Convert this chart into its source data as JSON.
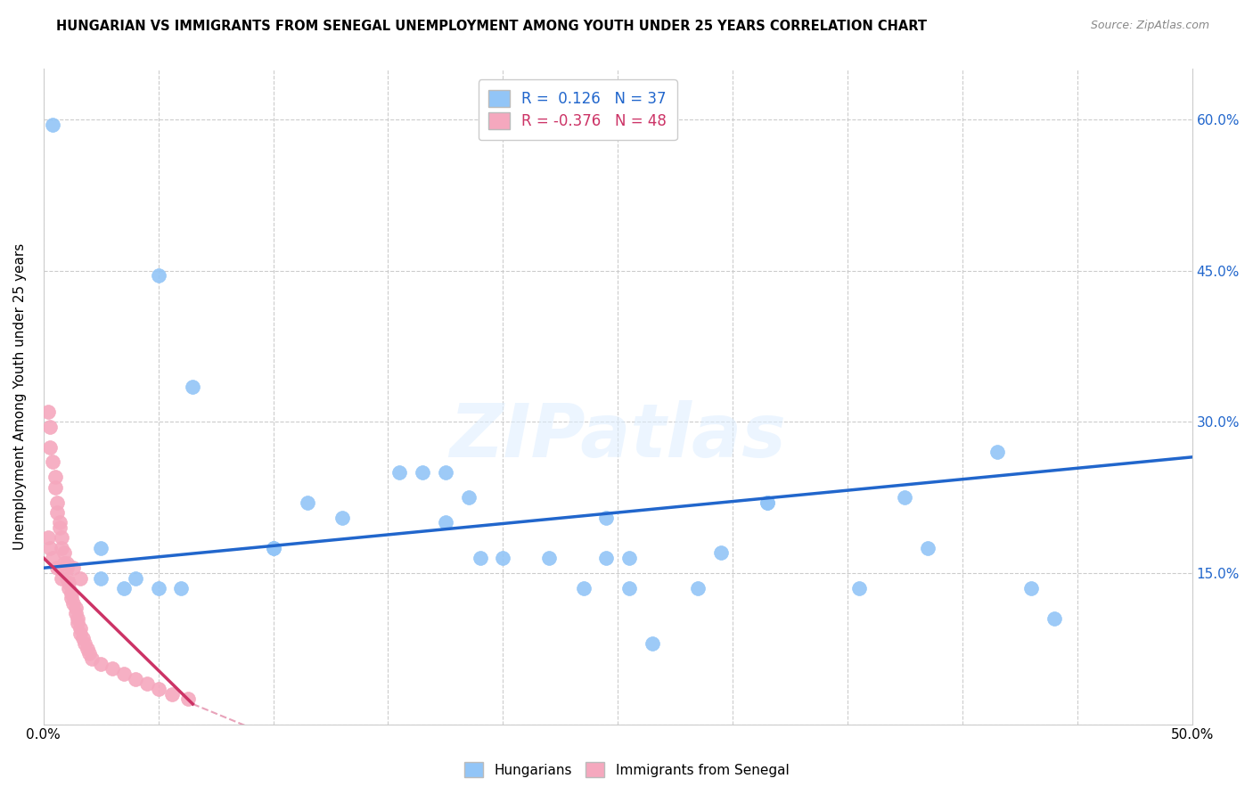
{
  "title": "HUNGARIAN VS IMMIGRANTS FROM SENEGAL UNEMPLOYMENT AMONG YOUTH UNDER 25 YEARS CORRELATION CHART",
  "source": "Source: ZipAtlas.com",
  "ylabel": "Unemployment Among Youth under 25 years",
  "xlim": [
    0,
    0.5
  ],
  "ylim": [
    0,
    0.65
  ],
  "xticks": [
    0.0,
    0.05,
    0.1,
    0.15,
    0.2,
    0.25,
    0.3,
    0.35,
    0.4,
    0.45,
    0.5
  ],
  "ytick_positions": [
    0.0,
    0.15,
    0.3,
    0.45,
    0.6
  ],
  "blue_R": 0.126,
  "blue_N": 37,
  "pink_R": -0.376,
  "pink_N": 48,
  "blue_color": "#92C5F7",
  "pink_color": "#F5A8BE",
  "blue_line_color": "#2166CC",
  "pink_line_color": "#CC3366",
  "blue_line": [
    [
      0.0,
      0.155
    ],
    [
      0.5,
      0.265
    ]
  ],
  "pink_line_solid": [
    [
      0.0,
      0.165
    ],
    [
      0.065,
      0.02
    ]
  ],
  "pink_line_dash": [
    [
      0.065,
      0.02
    ],
    [
      0.3,
      -0.2
    ]
  ],
  "blue_scatter": [
    [
      0.004,
      0.595
    ],
    [
      0.05,
      0.445
    ],
    [
      0.065,
      0.335
    ],
    [
      0.1,
      0.175
    ],
    [
      0.115,
      0.22
    ],
    [
      0.13,
      0.205
    ],
    [
      0.155,
      0.25
    ],
    [
      0.165,
      0.25
    ],
    [
      0.175,
      0.25
    ],
    [
      0.175,
      0.2
    ],
    [
      0.185,
      0.225
    ],
    [
      0.19,
      0.165
    ],
    [
      0.2,
      0.165
    ],
    [
      0.22,
      0.165
    ],
    [
      0.235,
      0.135
    ],
    [
      0.245,
      0.205
    ],
    [
      0.245,
      0.165
    ],
    [
      0.255,
      0.165
    ],
    [
      0.255,
      0.135
    ],
    [
      0.265,
      0.08
    ],
    [
      0.285,
      0.135
    ],
    [
      0.295,
      0.17
    ],
    [
      0.315,
      0.22
    ],
    [
      0.315,
      0.22
    ],
    [
      0.355,
      0.135
    ],
    [
      0.375,
      0.225
    ],
    [
      0.385,
      0.175
    ],
    [
      0.415,
      0.27
    ],
    [
      0.025,
      0.175
    ],
    [
      0.025,
      0.145
    ],
    [
      0.035,
      0.135
    ],
    [
      0.04,
      0.145
    ],
    [
      0.05,
      0.135
    ],
    [
      0.06,
      0.135
    ],
    [
      0.43,
      0.135
    ],
    [
      0.44,
      0.105
    ],
    [
      0.1,
      0.175
    ]
  ],
  "pink_scatter": [
    [
      0.002,
      0.31
    ],
    [
      0.003,
      0.295
    ],
    [
      0.003,
      0.275
    ],
    [
      0.004,
      0.26
    ],
    [
      0.005,
      0.245
    ],
    [
      0.005,
      0.235
    ],
    [
      0.006,
      0.22
    ],
    [
      0.006,
      0.21
    ],
    [
      0.007,
      0.2
    ],
    [
      0.007,
      0.195
    ],
    [
      0.008,
      0.185
    ],
    [
      0.008,
      0.175
    ],
    [
      0.009,
      0.17
    ],
    [
      0.009,
      0.16
    ],
    [
      0.01,
      0.155
    ],
    [
      0.01,
      0.145
    ],
    [
      0.011,
      0.14
    ],
    [
      0.011,
      0.135
    ],
    [
      0.012,
      0.13
    ],
    [
      0.012,
      0.125
    ],
    [
      0.013,
      0.12
    ],
    [
      0.014,
      0.115
    ],
    [
      0.014,
      0.11
    ],
    [
      0.015,
      0.105
    ],
    [
      0.015,
      0.1
    ],
    [
      0.016,
      0.095
    ],
    [
      0.016,
      0.09
    ],
    [
      0.017,
      0.085
    ],
    [
      0.018,
      0.08
    ],
    [
      0.019,
      0.075
    ],
    [
      0.02,
      0.07
    ],
    [
      0.021,
      0.065
    ],
    [
      0.025,
      0.06
    ],
    [
      0.03,
      0.055
    ],
    [
      0.035,
      0.05
    ],
    [
      0.04,
      0.045
    ],
    [
      0.045,
      0.04
    ],
    [
      0.05,
      0.035
    ],
    [
      0.056,
      0.03
    ],
    [
      0.063,
      0.025
    ],
    [
      0.002,
      0.185
    ],
    [
      0.003,
      0.175
    ],
    [
      0.004,
      0.165
    ],
    [
      0.006,
      0.155
    ],
    [
      0.008,
      0.145
    ],
    [
      0.01,
      0.16
    ],
    [
      0.013,
      0.155
    ],
    [
      0.016,
      0.145
    ]
  ],
  "watermark": "ZIPatlas",
  "background_color": "#ffffff",
  "grid_color": "#cccccc"
}
